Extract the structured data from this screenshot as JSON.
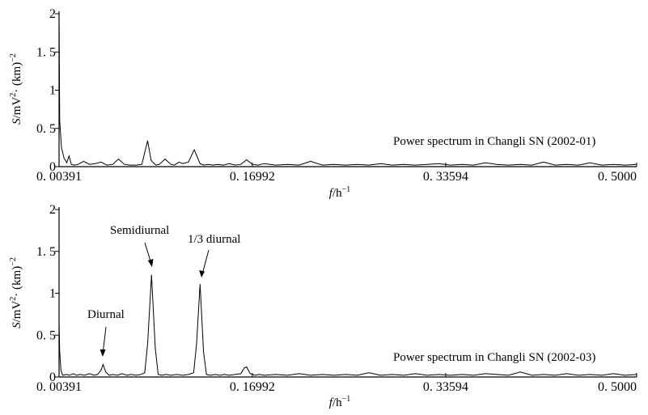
{
  "chart_data": [
    {
      "type": "line",
      "title": "Power spectrum in Changli SN (2002-01)",
      "xlabel": {
        "var": "f",
        "unit": "/h",
        "exp": "−1"
      },
      "ylabel": {
        "var": "S",
        "unit1": "/mV",
        "exp1": "2",
        "unit2": "· (km)",
        "exp2": "−2"
      },
      "xlim": [
        0.00391,
        0.5
      ],
      "ylim": [
        0,
        2
      ],
      "x_ticks": [
        0.00391,
        0.16992,
        0.33594,
        0.5
      ],
      "x_tick_labels": [
        "0. 00391",
        "0. 16992",
        "0. 33594",
        "0. 5000"
      ],
      "y_ticks": [
        0,
        0.5,
        1,
        1.5,
        2
      ],
      "y_tick_labels": [
        "0",
        "0. 5",
        "1",
        "1. 5",
        "2"
      ],
      "grid": false,
      "annotations": [],
      "series": [
        {
          "x": [
            0.0039,
            0.0045,
            0.006,
            0.008,
            0.0105,
            0.0125,
            0.0145,
            0.017,
            0.02,
            0.025,
            0.03,
            0.035,
            0.04,
            0.045,
            0.05,
            0.055,
            0.06,
            0.065,
            0.07,
            0.075,
            0.08,
            0.083,
            0.087,
            0.09,
            0.095,
            0.1,
            0.103,
            0.107,
            0.11,
            0.115,
            0.12,
            0.125,
            0.128,
            0.132,
            0.136,
            0.14,
            0.145,
            0.15,
            0.155,
            0.16,
            0.165,
            0.17,
            0.175,
            0.18,
            0.19,
            0.2,
            0.21,
            0.22,
            0.23,
            0.24,
            0.25,
            0.26,
            0.27,
            0.28,
            0.29,
            0.3,
            0.31,
            0.32,
            0.33,
            0.34,
            0.35,
            0.36,
            0.37,
            0.38,
            0.39,
            0.4,
            0.41,
            0.42,
            0.43,
            0.44,
            0.45,
            0.46,
            0.47,
            0.48,
            0.49,
            0.5
          ],
          "y": [
            2.0,
            0.6,
            0.25,
            0.12,
            0.05,
            0.14,
            0.03,
            0.02,
            0.03,
            0.07,
            0.03,
            0.04,
            0.06,
            0.02,
            0.03,
            0.1,
            0.03,
            0.02,
            0.02,
            0.03,
            0.34,
            0.08,
            0.02,
            0.03,
            0.1,
            0.03,
            0.02,
            0.06,
            0.04,
            0.06,
            0.22,
            0.04,
            0.02,
            0.03,
            0.02,
            0.03,
            0.02,
            0.04,
            0.02,
            0.03,
            0.09,
            0.03,
            0.02,
            0.04,
            0.02,
            0.03,
            0.02,
            0.07,
            0.02,
            0.03,
            0.02,
            0.03,
            0.02,
            0.04,
            0.02,
            0.03,
            0.02,
            0.03,
            0.04,
            0.02,
            0.03,
            0.02,
            0.05,
            0.03,
            0.02,
            0.03,
            0.02,
            0.06,
            0.02,
            0.03,
            0.02,
            0.05,
            0.02,
            0.03,
            0.02,
            0.03
          ]
        }
      ]
    },
    {
      "type": "line",
      "title": "Power spectrum in Changli SN (2002-03)",
      "xlabel": {
        "var": "f",
        "unit": "/h",
        "exp": "−1"
      },
      "ylabel": {
        "var": "S",
        "unit1": "/mV",
        "exp1": "2",
        "unit2": "· (km)",
        "exp2": "−2"
      },
      "xlim": [
        0.00391,
        0.5
      ],
      "ylim": [
        0,
        2
      ],
      "x_ticks": [
        0.00391,
        0.16992,
        0.33594,
        0.5
      ],
      "x_tick_labels": [
        "0. 00391",
        "0. 16992",
        "0. 33594",
        "0. 5000"
      ],
      "y_ticks": [
        0,
        0.5,
        1,
        1.5,
        2
      ],
      "y_tick_labels": [
        "0",
        "0. 5",
        "1",
        "1. 5",
        "2"
      ],
      "grid": false,
      "annotations": [
        {
          "text": "Diurnal",
          "x": 0.0417,
          "y": 0.15
        },
        {
          "text": "Semidiurnal",
          "x": 0.0833,
          "y": 1.22
        },
        {
          "text": "1/3 diurnal",
          "x": 0.125,
          "y": 1.11
        }
      ],
      "series": [
        {
          "x": [
            0.0039,
            0.0045,
            0.0055,
            0.007,
            0.01,
            0.013,
            0.016,
            0.019,
            0.022,
            0.026,
            0.03,
            0.034,
            0.037,
            0.04,
            0.0417,
            0.044,
            0.047,
            0.05,
            0.054,
            0.058,
            0.062,
            0.066,
            0.07,
            0.074,
            0.0775,
            0.08,
            0.0833,
            0.0865,
            0.089,
            0.092,
            0.096,
            0.1,
            0.105,
            0.11,
            0.115,
            0.1195,
            0.122,
            0.125,
            0.128,
            0.1305,
            0.134,
            0.138,
            0.142,
            0.146,
            0.15,
            0.155,
            0.16,
            0.163,
            0.165,
            0.168,
            0.172,
            0.176,
            0.18,
            0.19,
            0.2,
            0.21,
            0.22,
            0.23,
            0.24,
            0.25,
            0.26,
            0.27,
            0.28,
            0.29,
            0.3,
            0.31,
            0.32,
            0.33,
            0.34,
            0.35,
            0.36,
            0.37,
            0.38,
            0.39,
            0.4,
            0.41,
            0.42,
            0.43,
            0.44,
            0.45,
            0.46,
            0.47,
            0.48,
            0.49,
            0.5
          ],
          "y": [
            0.65,
            0.3,
            0.08,
            0.02,
            0.03,
            0.02,
            0.04,
            0.02,
            0.03,
            0.02,
            0.04,
            0.02,
            0.03,
            0.08,
            0.15,
            0.06,
            0.02,
            0.03,
            0.02,
            0.04,
            0.02,
            0.03,
            0.02,
            0.03,
            0.05,
            0.4,
            1.22,
            0.35,
            0.03,
            0.02,
            0.03,
            0.02,
            0.03,
            0.02,
            0.03,
            0.05,
            0.4,
            1.11,
            0.3,
            0.03,
            0.02,
            0.03,
            0.02,
            0.03,
            0.02,
            0.03,
            0.04,
            0.11,
            0.12,
            0.04,
            0.02,
            0.03,
            0.02,
            0.03,
            0.02,
            0.04,
            0.02,
            0.03,
            0.02,
            0.03,
            0.02,
            0.05,
            0.02,
            0.03,
            0.02,
            0.04,
            0.02,
            0.03,
            0.02,
            0.03,
            0.02,
            0.04,
            0.03,
            0.02,
            0.06,
            0.02,
            0.03,
            0.02,
            0.04,
            0.02,
            0.03,
            0.02,
            0.04,
            0.02,
            0.03
          ]
        }
      ]
    }
  ]
}
